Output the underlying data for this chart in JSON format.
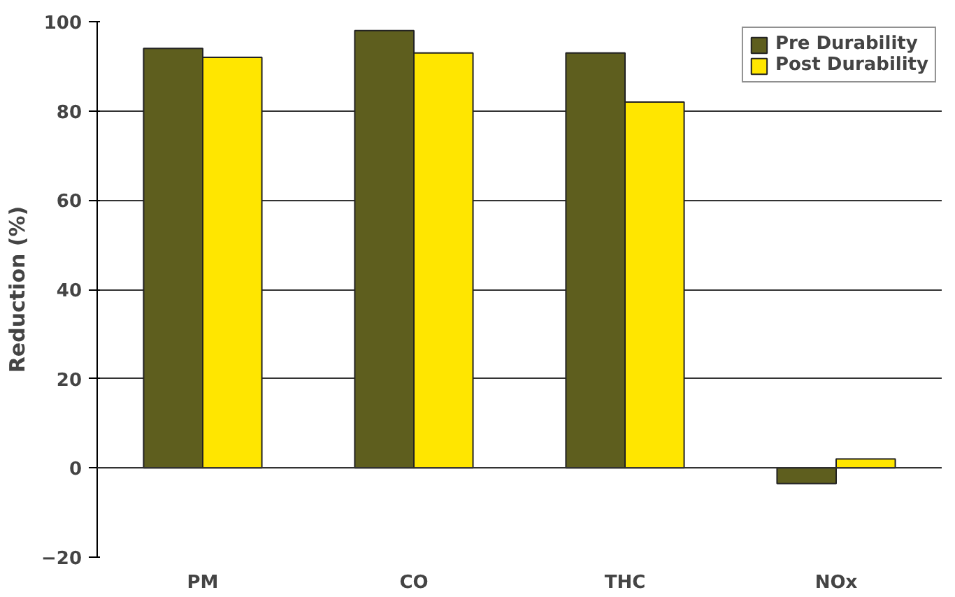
{
  "chart_data": {
    "type": "bar",
    "ylabel": "Reduction (%)",
    "categories": [
      "PM",
      "CO",
      "THC",
      "NOx"
    ],
    "series": [
      {
        "name": "Pre Durability",
        "color": "#5e5e1e",
        "values": [
          94,
          98,
          93,
          -3.5
        ]
      },
      {
        "name": "Post Durability",
        "color": "#ffe600",
        "values": [
          92,
          93,
          82,
          2
        ]
      }
    ],
    "ylim": [
      -20,
      100
    ],
    "yticks": [
      -20,
      0,
      20,
      40,
      60,
      80,
      100
    ],
    "grid": "y",
    "legend": "top right"
  }
}
